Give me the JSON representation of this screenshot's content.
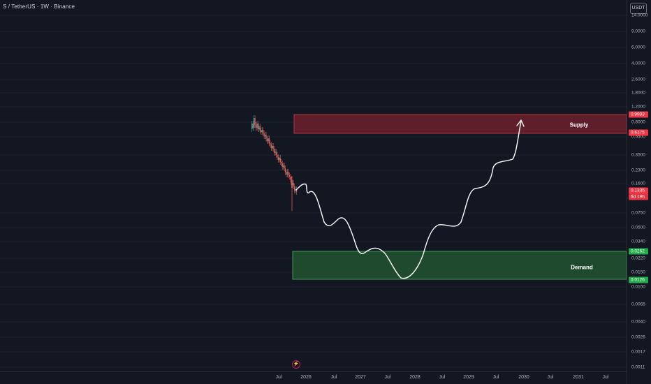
{
  "header": {
    "symbol": "S / TetherUS · 1W · Binance"
  },
  "price_scale": {
    "currency": "USDT",
    "ticks": [
      "14.0000",
      "9.0000",
      "6.0000",
      "4.0000",
      "2.6000",
      "1.8000",
      "1.2000",
      "0.8000",
      "0.5500",
      "0.3500",
      "0.2300",
      "0.1600",
      "0.0750",
      "0.0500",
      "0.0340",
      "0.0220",
      "0.0150",
      "0.0100",
      "0.0065",
      "0.0040",
      "0.0026",
      "0.0017",
      "0.0011"
    ]
  },
  "badges": {
    "supply_top": "0.9993",
    "supply_bottom": "0.6175",
    "last_price": "0.1335",
    "countdown": "6d 19h",
    "demand_top": "0.0262",
    "demand_bottom": "0.0126"
  },
  "time_scale": {
    "labels": [
      "Jul",
      "2026",
      "Jul",
      "2027",
      "Jul",
      "2028",
      "Jul",
      "2029",
      "Jul",
      "2030",
      "Jul",
      "2031",
      "Jul"
    ]
  },
  "zones": {
    "supply": {
      "label": "Supply",
      "top": 0.9993,
      "bottom": 0.6175
    },
    "demand": {
      "label": "Demand",
      "top": 0.0262,
      "bottom": 0.0126
    }
  },
  "colors": {
    "background": "#131722",
    "up": "#26a69a",
    "down": "#ef5350",
    "supply_fill": "#5e1f2b",
    "demand_fill": "#1f4a2d",
    "supply_badge": "#f23645",
    "demand_badge": "#22ab4a",
    "projection": "#ffffff"
  }
}
